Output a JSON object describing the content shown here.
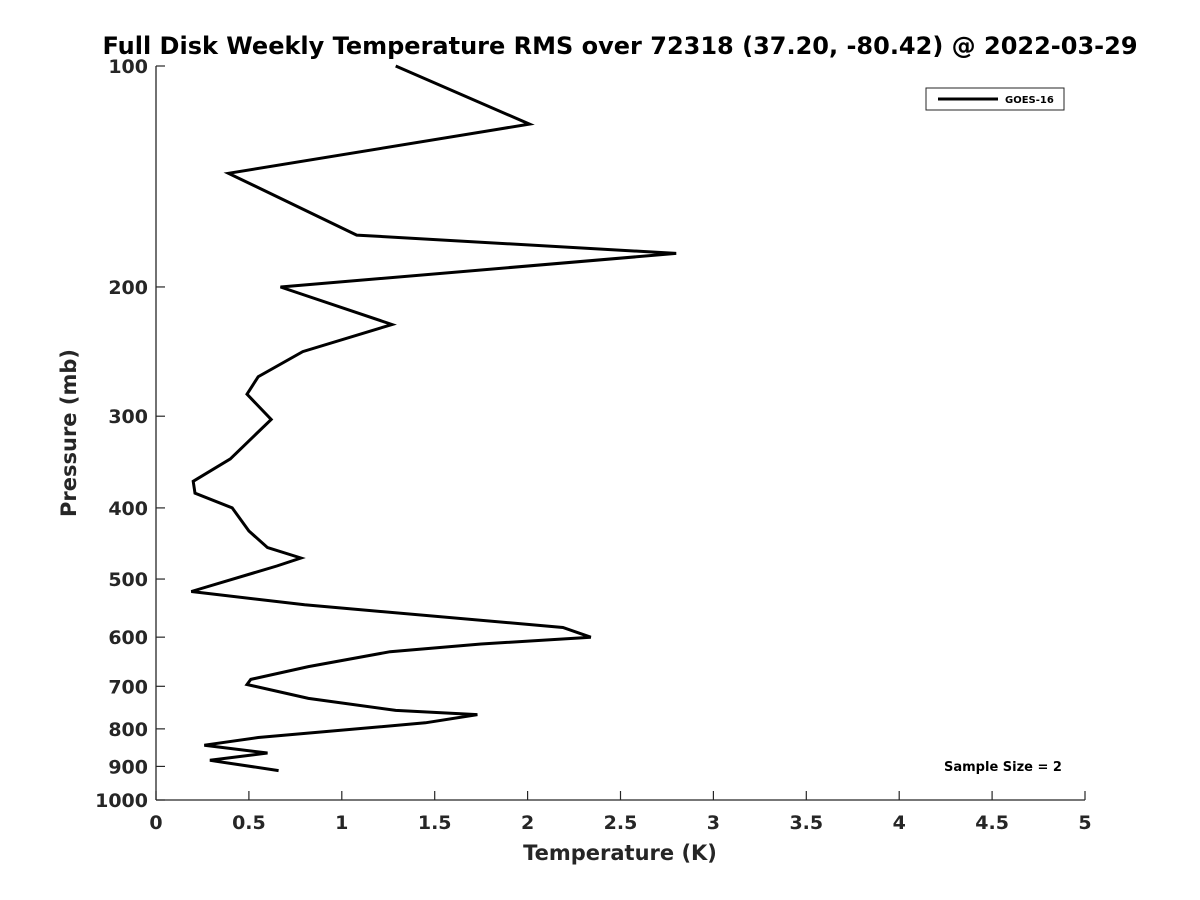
{
  "chart_data": {
    "type": "line",
    "title": "Full Disk Weekly Temperature RMS over 72318 (37.20, -80.42) @ 2022-03-29",
    "xlabel": "Temperature (K)",
    "ylabel": "Pressure (mb)",
    "xlim": [
      0,
      5
    ],
    "ylim": [
      1000,
      100
    ],
    "yscale": "log",
    "y_reversed": true,
    "xticks": [
      "0",
      "0.5",
      "1",
      "1.5",
      "2",
      "2.5",
      "3",
      "3.5",
      "4",
      "4.5",
      "5"
    ],
    "yticks": [
      "100",
      "200",
      "300",
      "400",
      "500",
      "600",
      "700",
      "800",
      "900",
      "1000"
    ],
    "grid": false,
    "legend_position": "top-right",
    "annotation": "Sample Size = 2",
    "colors": {
      "line": "#000000",
      "axis": "#262626"
    },
    "series": [
      {
        "name": "GOES-16",
        "x": [
          1.29,
          2.01,
          0.39,
          1.08,
          2.8,
          0.67,
          1.27,
          0.79,
          0.55,
          0.49,
          0.62,
          0.4,
          0.2,
          0.21,
          0.41,
          0.5,
          0.6,
          0.78,
          0.65,
          0.19,
          0.8,
          2.19,
          2.34,
          1.75,
          1.26,
          0.82,
          0.51,
          0.49,
          0.82,
          1.29,
          1.73,
          1.45,
          0.55,
          0.26,
          0.6,
          0.29,
          0.66
        ],
        "y": [
          100,
          120,
          140,
          170,
          180,
          200,
          225,
          245,
          265,
          280,
          303,
          343,
          368,
          382,
          400,
          430,
          453,
          468,
          480,
          520,
          542,
          582,
          600,
          613,
          628,
          658,
          685,
          696,
          727,
          755,
          765,
          785,
          822,
          842,
          863,
          883,
          912
        ]
      }
    ]
  }
}
